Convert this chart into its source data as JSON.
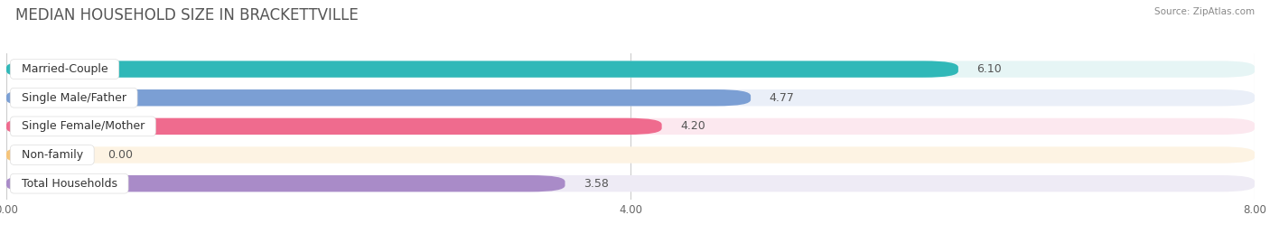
{
  "title": "MEDIAN HOUSEHOLD SIZE IN BRACKETTVILLE",
  "source": "Source: ZipAtlas.com",
  "categories": [
    "Married-Couple",
    "Single Male/Father",
    "Single Female/Mother",
    "Non-family",
    "Total Households"
  ],
  "values": [
    6.1,
    4.77,
    4.2,
    0.0,
    3.58
  ],
  "bar_colors": [
    "#30b8b8",
    "#7b9fd4",
    "#ef6b8e",
    "#f5c47a",
    "#a98bc8"
  ],
  "bar_bg_colors": [
    "#e6f5f5",
    "#eaeff8",
    "#fce8ef",
    "#fdf3e3",
    "#eeebf5"
  ],
  "xlim": [
    0,
    8.0
  ],
  "xticks": [
    0.0,
    4.0,
    8.0
  ],
  "xtick_labels": [
    "0.00",
    "4.00",
    "8.00"
  ],
  "title_fontsize": 12,
  "label_fontsize": 9,
  "value_fontsize": 9,
  "background_color": "#ffffff"
}
